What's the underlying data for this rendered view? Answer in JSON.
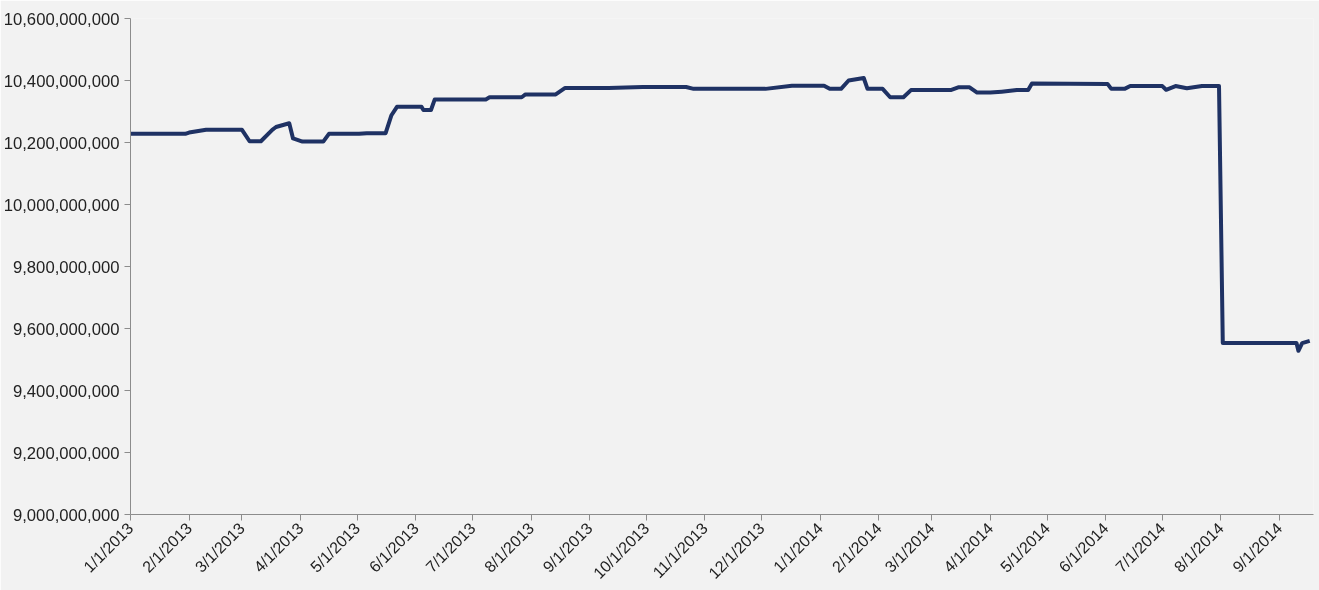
{
  "chart_data": {
    "type": "line",
    "grid": false,
    "marker": "none",
    "line_style": "solid",
    "xlim": [
      "2013-01-01",
      "2014-09-19"
    ],
    "xticks": [
      {
        "value": "2013-01-01",
        "label": "1/1/2013"
      },
      {
        "value": "2013-02-01",
        "label": "2/1/2013"
      },
      {
        "value": "2013-03-01",
        "label": "3/1/2013"
      },
      {
        "value": "2013-04-01",
        "label": "4/1/2013"
      },
      {
        "value": "2013-05-01",
        "label": "5/1/2013"
      },
      {
        "value": "2013-06-01",
        "label": "6/1/2013"
      },
      {
        "value": "2013-07-01",
        "label": "7/1/2013"
      },
      {
        "value": "2013-08-01",
        "label": "8/1/2013"
      },
      {
        "value": "2013-09-01",
        "label": "9/1/2013"
      },
      {
        "value": "2013-10-01",
        "label": "10/1/2013"
      },
      {
        "value": "2013-11-01",
        "label": "11/1/2013"
      },
      {
        "value": "2013-12-01",
        "label": "12/1/2013"
      },
      {
        "value": "2014-01-01",
        "label": "1/1/2014"
      },
      {
        "value": "2014-02-01",
        "label": "2/1/2014"
      },
      {
        "value": "2014-03-01",
        "label": "3/1/2014"
      },
      {
        "value": "2014-04-01",
        "label": "4/1/2014"
      },
      {
        "value": "2014-05-01",
        "label": "5/1/2014"
      },
      {
        "value": "2014-06-01",
        "label": "6/1/2014"
      },
      {
        "value": "2014-07-01",
        "label": "7/1/2014"
      },
      {
        "value": "2014-08-01",
        "label": "8/1/2014"
      },
      {
        "value": "2014-09-01",
        "label": "9/1/2014"
      }
    ],
    "ylim": [
      9000000000,
      10600000000
    ],
    "yticks": [
      {
        "value": 9000000000,
        "label": "9,000,000,000"
      },
      {
        "value": 9200000000,
        "label": "9,200,000,000"
      },
      {
        "value": 9400000000,
        "label": "9,400,000,000"
      },
      {
        "value": 9600000000,
        "label": "9,600,000,000"
      },
      {
        "value": 9800000000,
        "label": "9,800,000,000"
      },
      {
        "value": 10000000000,
        "label": "10,000,000,000"
      },
      {
        "value": 10200000000,
        "label": "10,200,000,000"
      },
      {
        "value": 10400000000,
        "label": "10,400,000,000"
      },
      {
        "value": 10600000000,
        "label": "10,600,000,000"
      }
    ],
    "x": [
      "2013-01-01",
      "2013-01-30",
      "2013-02-01",
      "2013-02-10",
      "2013-03-01",
      "2013-03-05",
      "2013-03-11",
      "2013-03-17",
      "2013-03-19",
      "2013-03-26",
      "2013-03-28",
      "2013-04-02",
      "2013-04-13",
      "2013-04-16",
      "2013-05-02",
      "2013-05-06",
      "2013-05-16",
      "2013-05-19",
      "2013-05-22",
      "2013-06-04",
      "2013-06-05",
      "2013-06-09",
      "2013-06-11",
      "2013-07-08",
      "2013-07-10",
      "2013-07-27",
      "2013-07-29",
      "2013-08-14",
      "2013-08-19",
      "2013-09-11",
      "2013-09-29",
      "2013-10-22",
      "2013-10-26",
      "2013-12-03",
      "2013-12-17",
      "2014-01-03",
      "2014-01-06",
      "2014-01-12",
      "2014-01-16",
      "2014-01-24",
      "2014-01-26",
      "2014-02-03",
      "2014-02-07",
      "2014-02-14",
      "2014-02-18",
      "2014-03-11",
      "2014-03-15",
      "2014-03-21",
      "2014-03-25",
      "2014-04-01",
      "2014-04-07",
      "2014-04-15",
      "2014-04-21",
      "2014-04-23",
      "2014-06-02",
      "2014-06-04",
      "2014-06-11",
      "2014-06-14",
      "2014-07-01",
      "2014-07-03",
      "2014-07-08",
      "2014-07-14",
      "2014-07-22",
      "2014-07-31",
      "2014-08-02",
      "2014-09-10",
      "2014-09-11",
      "2014-09-13",
      "2014-09-17"
    ],
    "series": [
      {
        "color": "#1f3264",
        "values": [
          10228000000,
          10228000000,
          10232000000,
          10241000000,
          10241000000,
          10204000000,
          10204000000,
          10241000000,
          10250000000,
          10262000000,
          10213000000,
          10203000000,
          10203000000,
          10228000000,
          10228000000,
          10230000000,
          10230000000,
          10287000000,
          10315000000,
          10315000000,
          10305000000,
          10305000000,
          10339000000,
          10339000000,
          10346000000,
          10346000000,
          10355000000,
          10355000000,
          10376000000,
          10376000000,
          10379000000,
          10379000000,
          10373000000,
          10373000000,
          10383000000,
          10383000000,
          10373000000,
          10373000000,
          10400000000,
          10408000000,
          10373000000,
          10373000000,
          10346000000,
          10346000000,
          10369000000,
          10369000000,
          10378000000,
          10378000000,
          10361000000,
          10361000000,
          10364000000,
          10369000000,
          10369000000,
          10390000000,
          10389000000,
          10373000000,
          10373000000,
          10382000000,
          10382000000,
          10370000000,
          10382000000,
          10375000000,
          10382000000,
          10382000000,
          9553000000,
          9553000000,
          9528000000,
          9553000000,
          9560000000
        ]
      }
    ]
  }
}
